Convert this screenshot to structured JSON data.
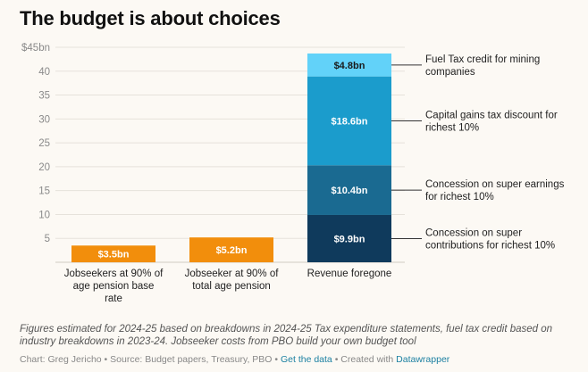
{
  "title": "The budget is about choices",
  "notes": "Figures estimated for 2024-25 based on breakdowns in 2024-25 Tax expenditure statements, fuel tax credit based on industry breakdowns in 2023-24. Jobseeker costs from PBO build your own budget tool",
  "footer": {
    "credit": "Chart: Greg Jericho",
    "sep1": " • ",
    "source": "Source: Budget papers, Treasury, PBO",
    "sep2": " • ",
    "get_data": "Get the data",
    "sep3": " • ",
    "created": "Created with ",
    "datawrapper": "Datawrapper"
  },
  "chart_data": {
    "type": "bar",
    "stacked": true,
    "ylim": [
      0,
      45
    ],
    "y_ticks": [
      {
        "value": 45,
        "label": "$45bn"
      },
      {
        "value": 40,
        "label": "40"
      },
      {
        "value": 35,
        "label": "35"
      },
      {
        "value": 30,
        "label": "30"
      },
      {
        "value": 25,
        "label": "25"
      },
      {
        "value": 20,
        "label": "20"
      },
      {
        "value": 15,
        "label": "15"
      },
      {
        "value": 10,
        "label": "10"
      },
      {
        "value": 5,
        "label": "5"
      }
    ],
    "grid": true,
    "categories": [
      {
        "label": [
          "Jobseekers at 90% of",
          "age pension base",
          "rate"
        ]
      },
      {
        "label": [
          "Jobseeker at 90% of",
          "total age pension"
        ]
      },
      {
        "label": [
          "Revenue foregone"
        ]
      }
    ],
    "segments": [
      {
        "category": 0,
        "value": 3.5,
        "label": "$3.5bn",
        "color": "#f28e0c",
        "label_color": "#ffffff"
      },
      {
        "category": 1,
        "value": 5.2,
        "label": "$5.2bn",
        "color": "#f28e0c",
        "label_color": "#ffffff"
      },
      {
        "category": 2,
        "value": 9.9,
        "label": "$9.9bn",
        "color": "#0f3a5c",
        "label_color": "#ffffff",
        "annotation": [
          "Concession on super",
          "contributions for richest 10%"
        ]
      },
      {
        "category": 2,
        "value": 10.4,
        "label": "$10.4bn",
        "color": "#1a6a91",
        "label_color": "#ffffff",
        "annotation": [
          "Concession on super earnings",
          "for richest 10%"
        ]
      },
      {
        "category": 2,
        "value": 18.6,
        "label": "$18.6bn",
        "color": "#1b9ccc",
        "label_color": "#ffffff",
        "annotation": [
          "Capital gains tax discount for",
          "richest 10%"
        ]
      },
      {
        "category": 2,
        "value": 4.8,
        "label": "$4.8bn",
        "color": "#62d2f9",
        "label_color": "#1a1a1a",
        "annotation": [
          "Fuel Tax credit for mining",
          "companies"
        ]
      }
    ]
  }
}
